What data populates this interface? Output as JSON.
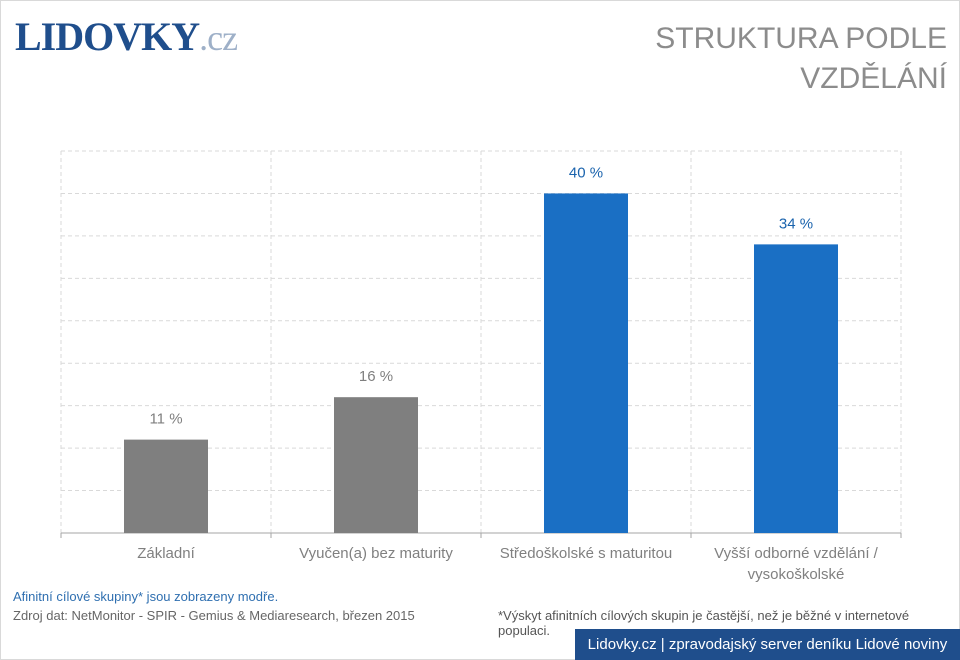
{
  "brand": {
    "name": "LIDOVKY",
    "tld": ".cz"
  },
  "title_line1": "STRUKTURA PODLE",
  "title_line2": "VZDĚLÁNÍ",
  "chart_data": {
    "type": "bar",
    "title": "STRUKTURA PODLE VZDĚLÁNÍ",
    "categories": [
      "Základní",
      "Vyučen(a) bez maturity",
      "Středoškolské s maturitou",
      "Vyšší odborné vzdělání / vysokoškolské"
    ],
    "values": [
      11,
      16,
      40,
      34
    ],
    "value_labels": [
      "11 %",
      "16 %",
      "40 %",
      "34 %"
    ],
    "highlighted": [
      false,
      false,
      true,
      true
    ],
    "ylim": [
      0,
      45
    ],
    "grid": true,
    "colors": {
      "default": "#7f7f7f",
      "highlight": "#1a6fc4",
      "default_label": "#7f7f7f",
      "highlight_label": "#1a63ad"
    }
  },
  "category_label_lines": [
    [
      "Základní"
    ],
    [
      "Vyučen(a) bez maturity"
    ],
    [
      "Středoškolské s maturitou"
    ],
    [
      "Vyšší odborné vzdělání /",
      "vysokoškolské"
    ]
  ],
  "note": "Afinitní cílové skupiny* jsou zobrazeny modře.",
  "source": "Zdroj dat: NetMonitor - SPIR - Gemius & Mediaresearch, březen 2015",
  "footnote": "*Výskyt afinitních cílových skupin je častější, než je běžné v internetové populaci.",
  "footer": "Lidovky.cz | zpravodajský server deníku Lidové noviny"
}
